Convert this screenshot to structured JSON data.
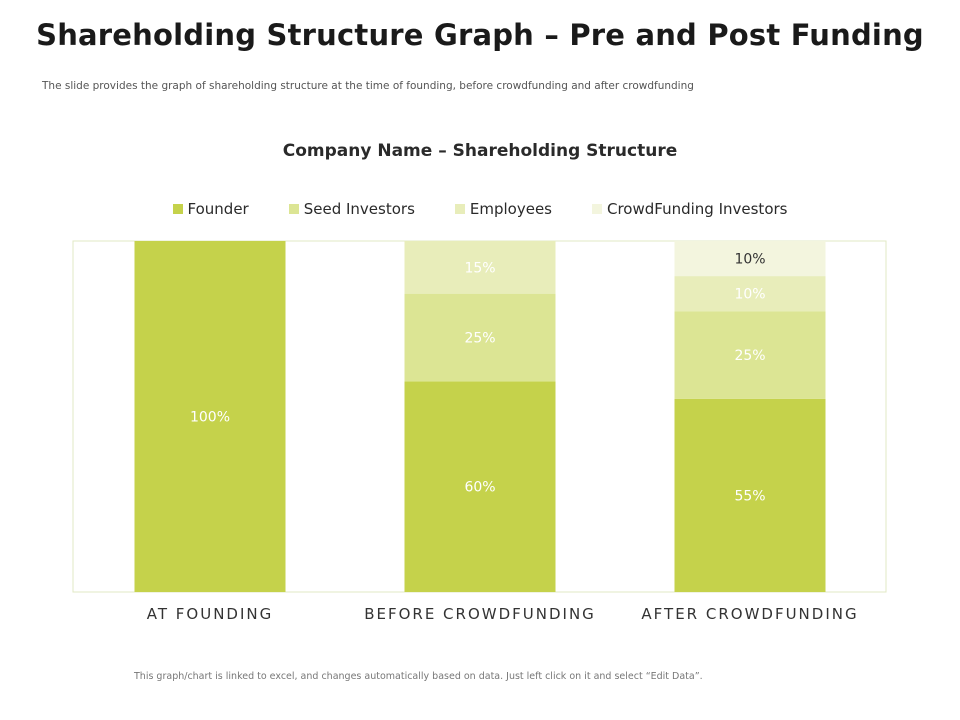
{
  "page": {
    "title": "Shareholding Structure Graph – Pre and Post Funding",
    "subtitle": "The slide provides the graph of shareholding structure at the time of founding,  before crowdfunding  and after crowdfunding",
    "footnote": "This graph/chart is linked to excel, and changes automatically based on data. Just left click on it and select “Edit Data”."
  },
  "chart_data": {
    "type": "bar",
    "stacked": true,
    "title": "Company Name – Shareholding Structure",
    "categories": [
      "AT FOUNDING",
      "BEFORE CROWDFUNDING",
      "AFTER CROWDFUNDING"
    ],
    "series": [
      {
        "name": "Founder",
        "values": [
          100,
          60,
          55
        ],
        "color": "#c5d24b",
        "label_color": "#ffffff"
      },
      {
        "name": "Seed Investors",
        "values": [
          0,
          25,
          25
        ],
        "color": "#dce594",
        "label_color": "#ffffff"
      },
      {
        "name": "Employees",
        "values": [
          0,
          15,
          10
        ],
        "color": "#e8edba",
        "label_color": "#ffffff"
      },
      {
        "name": "CrowdFunding Investors",
        "values": [
          0,
          0,
          10
        ],
        "color": "#f3f5de",
        "label_color": "#333333"
      }
    ],
    "value_suffix": "%",
    "ylim": [
      0,
      100
    ],
    "legend_position": "top",
    "grid": false
  }
}
